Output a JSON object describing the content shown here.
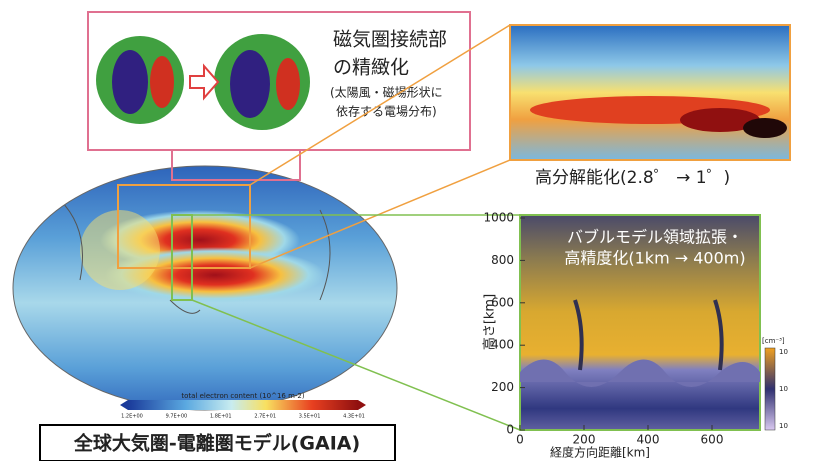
{
  "zoom_panel": {
    "title_lines": [
      "磁気圏接続部",
      "の精緻化"
    ],
    "note_lines": [
      "(太陽風・磁場形状に",
      "依存する電場分布)"
    ]
  },
  "resolution_caption": "高分解能化(2.8゜ → 1゜)",
  "colorbar": {
    "label": "total electron content (10^16 m-2)",
    "ticks": [
      "1.2E+00",
      "9.7E+00",
      "1.8E+01",
      "2.7E+01",
      "3.5E+01",
      "4.3E+01"
    ]
  },
  "bubble_panel": {
    "title_lines": [
      "バブルモデル領域拡張・",
      "高精度化(1km → 400m)"
    ],
    "y_label": "高さ[km]",
    "x_label": "経度方向距離[km]",
    "yticks": [
      0,
      200,
      400,
      600,
      800,
      1000
    ],
    "xticks": [
      0,
      200,
      400,
      600
    ],
    "colorbar_unit": "[cm⁻³]",
    "colorbar_ticks": [
      "10",
      "10",
      "10"
    ]
  },
  "footer_title": "全球大気圏-電離圏モデル(GAIA)"
}
